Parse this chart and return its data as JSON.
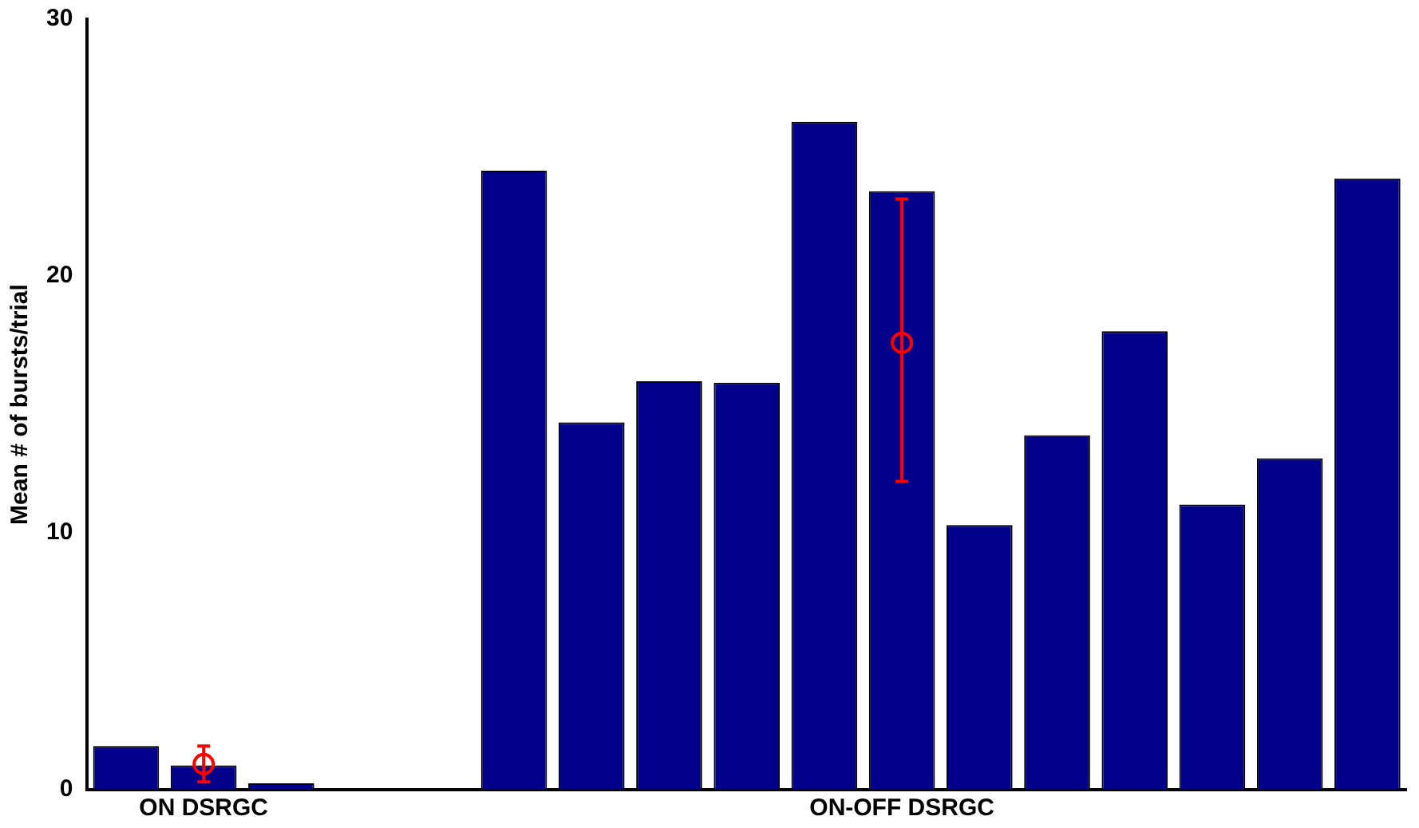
{
  "chart_data": {
    "type": "bar",
    "ylabel": "Mean # of bursts/trial",
    "categories": [
      null,
      "ON DSRGC",
      null,
      null,
      null,
      null,
      null,
      null,
      null,
      null,
      "ON-OFF DSRGC",
      null,
      null,
      null,
      null,
      null,
      null
    ],
    "series": [
      {
        "color": "#00008b",
        "values": [
          1.7,
          0.95,
          0.25,
          null,
          null,
          24.1,
          14.3,
          15.9,
          15.85,
          26.0,
          23.3,
          10.3,
          13.8,
          17.85,
          11.1,
          12.9,
          23.8
        ]
      },
      {
        "type": "scatter",
        "color": "#ff0000",
        "x": [
          "ON DSRGC",
          "ON-OFF DSRGC"
        ],
        "values": [
          1.0,
          17.4
        ],
        "errors": [
          [
            0.3,
            1.7
          ],
          [
            12.0,
            23.0
          ]
        ]
      }
    ],
    "ylim": [
      0,
      30
    ],
    "yticks": [
      0,
      10,
      20,
      30
    ],
    "grid": false,
    "legend": false,
    "marker": "circle"
  }
}
